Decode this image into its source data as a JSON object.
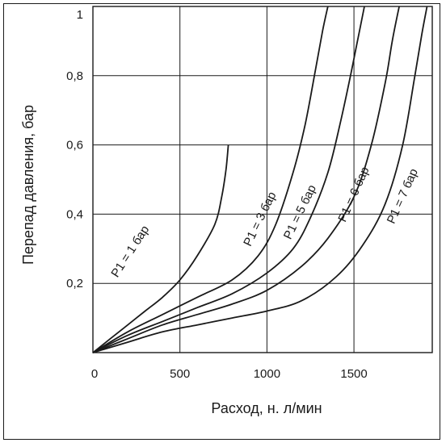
{
  "chart_data": {
    "type": "line",
    "title": "",
    "xlabel": "Расход, н. л/мин",
    "ylabel": "Перепад давления, бар",
    "xlim": [
      0,
      1950
    ],
    "ylim": [
      0,
      1
    ],
    "grid": true,
    "x_ticks": [
      "0",
      "500",
      "1000",
      "1500"
    ],
    "x_tick_values": [
      0,
      500,
      1000,
      1500
    ],
    "y_ticks": [
      "0,2",
      "0,4",
      "0,6",
      "0,8",
      "1"
    ],
    "y_tick_values": [
      0.2,
      0.4,
      0.6,
      0.8,
      1.0
    ],
    "series": [
      {
        "name": "P1 = 1 бар",
        "points": [
          [
            0,
            0
          ],
          [
            100,
            0.04
          ],
          [
            200,
            0.08
          ],
          [
            300,
            0.12
          ],
          [
            400,
            0.16
          ],
          [
            500,
            0.21
          ],
          [
            600,
            0.28
          ],
          [
            700,
            0.37
          ],
          [
            740,
            0.45
          ],
          [
            765,
            0.53
          ],
          [
            778,
            0.6
          ]
        ]
      },
      {
        "name": "P1 = 3 бар",
        "points": [
          [
            0,
            0
          ],
          [
            200,
            0.06
          ],
          [
            400,
            0.11
          ],
          [
            600,
            0.16
          ],
          [
            800,
            0.21
          ],
          [
            950,
            0.28
          ],
          [
            1050,
            0.37
          ],
          [
            1150,
            0.52
          ],
          [
            1220,
            0.66
          ],
          [
            1280,
            0.82
          ],
          [
            1320,
            0.93
          ],
          [
            1350,
            1.0
          ]
        ]
      },
      {
        "name": "P1 = 5 бар",
        "points": [
          [
            0,
            0
          ],
          [
            200,
            0.05
          ],
          [
            400,
            0.09
          ],
          [
            600,
            0.13
          ],
          [
            800,
            0.17
          ],
          [
            1000,
            0.23
          ],
          [
            1150,
            0.3
          ],
          [
            1250,
            0.39
          ],
          [
            1350,
            0.52
          ],
          [
            1420,
            0.66
          ],
          [
            1480,
            0.8
          ],
          [
            1520,
            0.9
          ],
          [
            1560,
            1.0
          ]
        ]
      },
      {
        "name": "P1 = 6 бар",
        "points": [
          [
            0,
            0
          ],
          [
            200,
            0.04
          ],
          [
            400,
            0.08
          ],
          [
            600,
            0.11
          ],
          [
            800,
            0.14
          ],
          [
            1000,
            0.18
          ],
          [
            1200,
            0.25
          ],
          [
            1350,
            0.33
          ],
          [
            1500,
            0.45
          ],
          [
            1600,
            0.6
          ],
          [
            1680,
            0.78
          ],
          [
            1720,
            0.9
          ],
          [
            1760,
            1.0
          ]
        ]
      },
      {
        "name": "P1 = 7 бар",
        "points": [
          [
            0,
            0
          ],
          [
            200,
            0.03
          ],
          [
            400,
            0.06
          ],
          [
            600,
            0.08
          ],
          [
            800,
            0.1
          ],
          [
            1000,
            0.12
          ],
          [
            1200,
            0.15
          ],
          [
            1400,
            0.22
          ],
          [
            1550,
            0.31
          ],
          [
            1680,
            0.43
          ],
          [
            1780,
            0.6
          ],
          [
            1850,
            0.8
          ],
          [
            1890,
            0.92
          ],
          [
            1920,
            1.0
          ]
        ]
      }
    ]
  }
}
